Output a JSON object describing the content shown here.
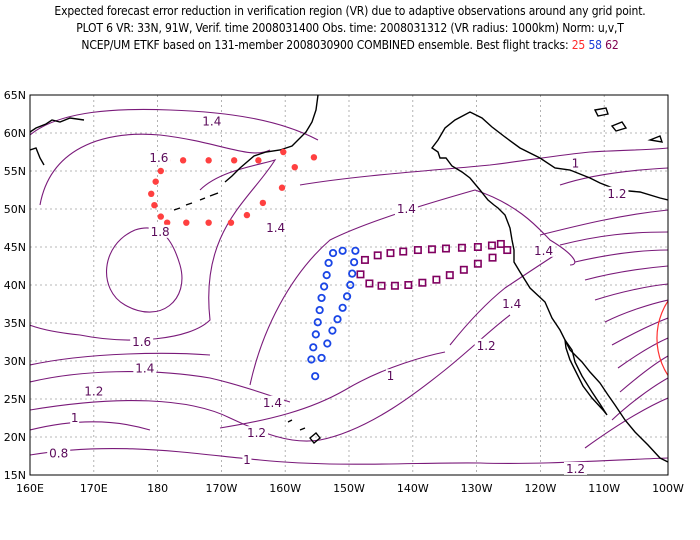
{
  "title": {
    "line1": "Expected forecast error reduction in verification region (VR) due to adaptive observations around any grid point.",
    "line2": "PLOT 6 VR: 33N, 91W, Verif. time 2008031400 Obs. time: 2008031312 (VR radius: 1000km) Norm: u,v,T",
    "line3_prefix": "NCEP/UM ETKF based on 131-member 2008030900 COMBINED ensemble.  Best flight tracks:",
    "track_a": "25",
    "track_b": "58",
    "track_c": "62"
  },
  "axes": {
    "lat_labels": [
      "65N",
      "60N",
      "55N",
      "50N",
      "45N",
      "40N",
      "35N",
      "30N",
      "25N",
      "20N",
      "15N"
    ],
    "lon_labels": [
      "160E",
      "170E",
      "180",
      "170W",
      "160W",
      "150W",
      "140W",
      "130W",
      "120W",
      "110W",
      "100W"
    ]
  },
  "contour_labels": [
    {
      "text": "1.4",
      "lon": -171.5,
      "lat": 61.5
    },
    {
      "text": "1.6",
      "lon": -179.8,
      "lat": 56.7
    },
    {
      "text": "1.8",
      "lon": -179.6,
      "lat": 47.0
    },
    {
      "text": "1.4",
      "lon": -161.5,
      "lat": 47.5
    },
    {
      "text": "1.4",
      "lon": -141.0,
      "lat": 50.0
    },
    {
      "text": "1",
      "lon": -114.5,
      "lat": 56.0
    },
    {
      "text": "1.2",
      "lon": -108.0,
      "lat": 52.0
    },
    {
      "text": "1.4",
      "lon": -119.5,
      "lat": 44.5
    },
    {
      "text": "1.4",
      "lon": -124.5,
      "lat": 37.5
    },
    {
      "text": "1.2",
      "lon": -128.5,
      "lat": 32.0
    },
    {
      "text": "1",
      "lon": -143.5,
      "lat": 28.0
    },
    {
      "text": "1.4",
      "lon": -162.0,
      "lat": 24.5
    },
    {
      "text": "1.6",
      "lon": -182.5,
      "lat": 32.5
    },
    {
      "text": "1.4",
      "lon": -182.0,
      "lat": 29.0
    },
    {
      "text": "1.2",
      "lon": -190.0,
      "lat": 26.0
    },
    {
      "text": "1",
      "lon": -193.0,
      "lat": 22.5
    },
    {
      "text": "1.2",
      "lon": -164.5,
      "lat": 20.5
    },
    {
      "text": "1",
      "lon": -166.0,
      "lat": 17.0
    },
    {
      "text": "0.8",
      "lon": -195.5,
      "lat": 17.8
    },
    {
      "text": "1.2",
      "lon": -114.5,
      "lat": 15.8
    }
  ],
  "flight_tracks": [
    {
      "id": "25",
      "color": "#ff4040",
      "marker": "dot",
      "points": [
        [
          -160.3,
          57.5
        ],
        [
          -164.2,
          56.4
        ],
        [
          -168,
          56.4
        ],
        [
          -172,
          56.4
        ],
        [
          -176,
          56.4
        ],
        [
          -178.5,
          56.4
        ],
        [
          -179.5,
          55.0
        ],
        [
          -180.3,
          53.6
        ],
        [
          -181,
          52.0
        ],
        [
          -180.5,
          50.5
        ],
        [
          -179.5,
          49.0
        ],
        [
          -178.5,
          48.2
        ],
        [
          -175.5,
          48.2
        ],
        [
          -172,
          48.2
        ],
        [
          -168.5,
          48.2
        ],
        [
          -166,
          49.2
        ],
        [
          -163.5,
          50.8
        ],
        [
          -160.5,
          52.8
        ],
        [
          -158.5,
          55.5
        ],
        [
          -155.5,
          56.8
        ]
      ]
    },
    {
      "id": "58",
      "color": "#1a46e6",
      "marker": "ring",
      "points": [
        [
          -149,
          44.5
        ],
        [
          -149.2,
          43.0
        ],
        [
          -149.5,
          41.5
        ],
        [
          -149.8,
          40.0
        ],
        [
          -150.3,
          38.5
        ],
        [
          -151,
          37.0
        ],
        [
          -151.8,
          35.5
        ],
        [
          -152.6,
          34.0
        ],
        [
          -153.4,
          32.3
        ],
        [
          -154.3,
          30.4
        ],
        [
          -155.3,
          28.0
        ],
        [
          -155.9,
          30.2
        ],
        [
          -155.6,
          31.8
        ],
        [
          -155.2,
          33.5
        ],
        [
          -154.9,
          35.1
        ],
        [
          -154.6,
          36.7
        ],
        [
          -154.3,
          38.3
        ],
        [
          -153.9,
          39.8
        ],
        [
          -153.5,
          41.3
        ],
        [
          -153.2,
          42.9
        ],
        [
          -152.5,
          44.2
        ],
        [
          -151,
          44.5
        ]
      ]
    },
    {
      "id": "62",
      "color": "#800060",
      "marker": "square",
      "points": [
        [
          -147.5,
          43.3
        ],
        [
          -145.5,
          43.9
        ],
        [
          -143.5,
          44.2
        ],
        [
          -141.5,
          44.4
        ],
        [
          -139.2,
          44.6
        ],
        [
          -137,
          44.7
        ],
        [
          -134.8,
          44.8
        ],
        [
          -132.3,
          44.9
        ],
        [
          -129.8,
          45.0
        ],
        [
          -127.6,
          45.2
        ],
        [
          -126.2,
          45.4
        ],
        [
          -125.2,
          44.6
        ],
        [
          -127.5,
          43.6
        ],
        [
          -129.8,
          42.8
        ],
        [
          -132,
          42.0
        ],
        [
          -134.2,
          41.3
        ],
        [
          -136.3,
          40.7
        ],
        [
          -138.5,
          40.3
        ],
        [
          -140.7,
          40.0
        ],
        [
          -142.8,
          39.9
        ],
        [
          -144.9,
          39.9
        ],
        [
          -146.8,
          40.2
        ],
        [
          -148.2,
          41.4
        ]
      ]
    }
  ],
  "verification_region": {
    "lon": -91,
    "lat": 33,
    "radius_km": 1000
  }
}
